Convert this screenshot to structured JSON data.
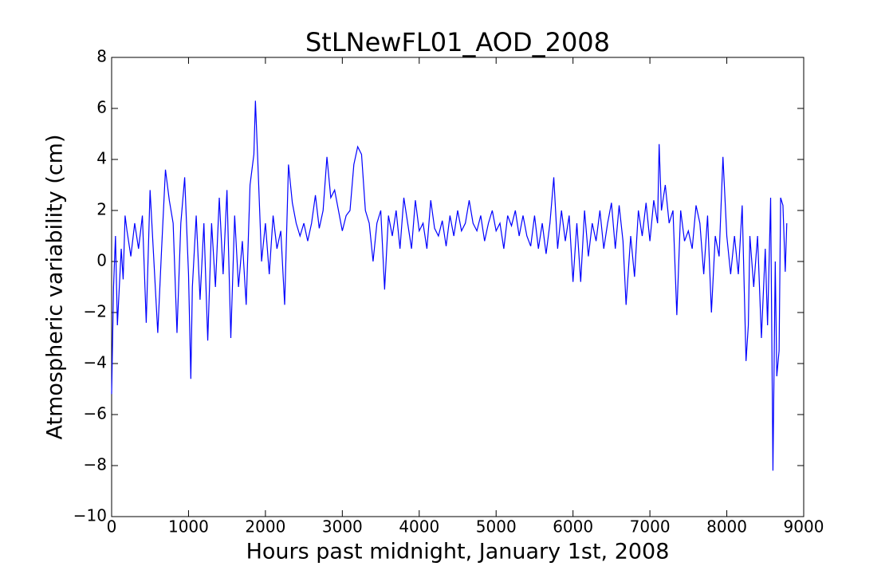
{
  "chart_data": {
    "type": "line",
    "title": "StLNewFL01_AOD_2008",
    "x_label": "Hours past midnight, January 1st, 2008",
    "y_label": "Atmospheric variability (cm)",
    "x": [
      0,
      25,
      50,
      75,
      100,
      125,
      150,
      175,
      200,
      250,
      300,
      350,
      400,
      450,
      500,
      550,
      600,
      650,
      700,
      750,
      800,
      850,
      900,
      950,
      1000,
      1030,
      1050,
      1100,
      1150,
      1200,
      1250,
      1300,
      1350,
      1400,
      1450,
      1500,
      1550,
      1600,
      1650,
      1700,
      1750,
      1800,
      1850,
      1870,
      1900,
      1950,
      2000,
      2050,
      2100,
      2150,
      2200,
      2250,
      2300,
      2350,
      2400,
      2450,
      2500,
      2550,
      2600,
      2650,
      2700,
      2750,
      2800,
      2850,
      2900,
      2950,
      3000,
      3050,
      3100,
      3150,
      3200,
      3250,
      3300,
      3350,
      3400,
      3450,
      3500,
      3550,
      3600,
      3650,
      3700,
      3750,
      3800,
      3850,
      3900,
      3950,
      4000,
      4050,
      4100,
      4150,
      4200,
      4250,
      4300,
      4350,
      4400,
      4450,
      4500,
      4550,
      4600,
      4650,
      4700,
      4750,
      4800,
      4850,
      4900,
      4950,
      5000,
      5050,
      5100,
      5150,
      5200,
      5250,
      5300,
      5350,
      5400,
      5450,
      5500,
      5550,
      5600,
      5650,
      5700,
      5750,
      5800,
      5850,
      5900,
      5950,
      6000,
      6050,
      6100,
      6150,
      6200,
      6250,
      6300,
      6350,
      6400,
      6450,
      6500,
      6550,
      6600,
      6650,
      6690,
      6750,
      6800,
      6850,
      6900,
      6950,
      7000,
      7050,
      7100,
      7120,
      7150,
      7200,
      7250,
      7300,
      7350,
      7400,
      7450,
      7500,
      7550,
      7600,
      7650,
      7700,
      7750,
      7800,
      7850,
      7900,
      7950,
      8000,
      8050,
      8100,
      8150,
      8200,
      8250,
      8280,
      8300,
      8350,
      8400,
      8450,
      8500,
      8530,
      8570,
      8600,
      8630,
      8650,
      8680,
      8700,
      8730,
      8760,
      8780
    ],
    "series": [
      {
        "name": "AOD",
        "color": "#0000ff",
        "values": [
          -5.2,
          -1,
          1,
          -2.5,
          -1,
          0.5,
          -0.7,
          1.8,
          1.2,
          0.2,
          1.5,
          0.5,
          1.8,
          -2.4,
          2.8,
          0,
          -2.8,
          0.5,
          3.6,
          2.4,
          1.5,
          -2.8,
          1.5,
          3.3,
          -0.5,
          -4.6,
          -1,
          1.8,
          -1.5,
          1.5,
          -3.1,
          1.5,
          -1,
          2.5,
          -0.5,
          2.8,
          -3,
          1.8,
          -1,
          0.8,
          -1.7,
          3,
          4.2,
          6.3,
          4,
          0,
          1.5,
          -0.5,
          1.8,
          0.5,
          1.2,
          -1.7,
          3.8,
          2.3,
          1.5,
          1,
          1.5,
          0.8,
          1.5,
          2.6,
          1.3,
          2,
          4.1,
          2.5,
          2.8,
          2,
          1.2,
          1.8,
          2,
          3.8,
          4.5,
          4.2,
          2,
          1.5,
          0,
          1.5,
          2,
          -1.1,
          1.8,
          1,
          2,
          0.5,
          2.5,
          1.5,
          0.5,
          2.4,
          1.2,
          1.5,
          0.5,
          2.4,
          1.3,
          1,
          1.6,
          0.6,
          1.8,
          1,
          2,
          1.2,
          1.5,
          2.4,
          1.5,
          1.2,
          1.8,
          0.8,
          1.5,
          2,
          1.2,
          1.5,
          0.5,
          1.8,
          1.4,
          2,
          1,
          1.8,
          1,
          0.6,
          1.8,
          0.5,
          1.5,
          0.3,
          1.5,
          3.3,
          0.5,
          2,
          0.8,
          1.8,
          -0.8,
          1.5,
          -0.8,
          2,
          0.2,
          1.5,
          0.8,
          2,
          0.5,
          1.5,
          2.3,
          0.5,
          2.2,
          0.8,
          -1.7,
          1,
          -0.6,
          2,
          1,
          2.3,
          0.8,
          2.4,
          1.5,
          4.6,
          2,
          3,
          1.5,
          2,
          -2.1,
          2,
          0.8,
          1.2,
          0.5,
          2.2,
          1.5,
          -0.5,
          1.8,
          -2,
          1,
          0.2,
          4.1,
          1,
          -0.5,
          1,
          -0.5,
          2.2,
          -3.9,
          -2.5,
          1,
          -1,
          1,
          -3,
          0.5,
          -2.5,
          2.5,
          -8.2,
          0,
          -4.5,
          -3.5,
          2.5,
          2.2,
          -0.4,
          1.5
        ]
      }
    ],
    "xlim": [
      0,
      9000
    ],
    "xticks": [
      0,
      1000,
      2000,
      3000,
      4000,
      5000,
      6000,
      7000,
      8000,
      9000
    ],
    "ylim": [
      -10,
      8
    ],
    "yticks": [
      {
        "value": -10,
        "label": "−10"
      },
      {
        "value": -8,
        "label": "−8"
      },
      {
        "value": -6,
        "label": "−6"
      },
      {
        "value": -4,
        "label": "−4"
      },
      {
        "value": -2,
        "label": "−2"
      },
      0,
      2,
      4,
      6,
      8
    ]
  }
}
